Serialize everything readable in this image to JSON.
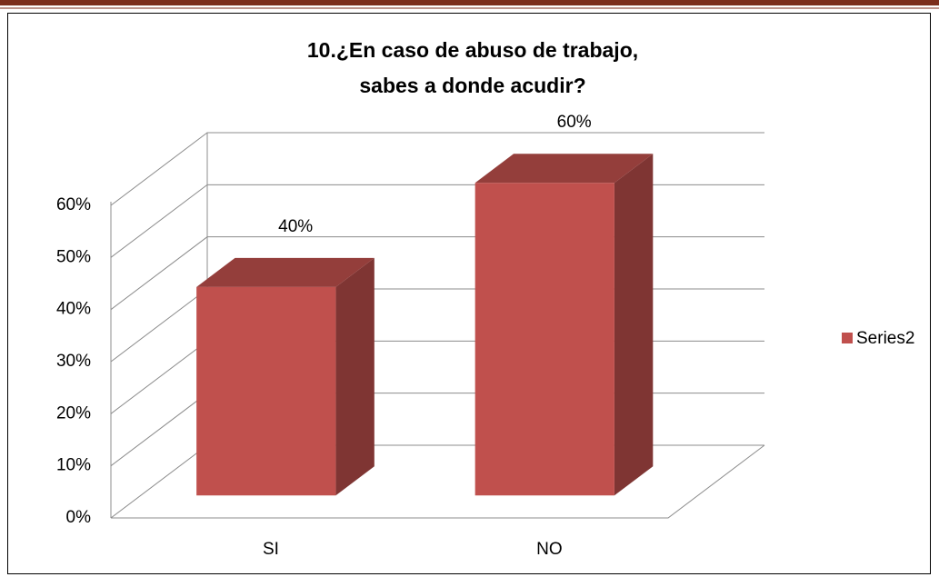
{
  "chart_data": {
    "type": "bar3d",
    "title": "10.¿En caso de abuso de trabajo, sabes a donde acudir?",
    "categories": [
      "SI",
      "NO"
    ],
    "series": [
      {
        "name": "Series2",
        "color": "#c0504d",
        "values": [
          40,
          60
        ],
        "value_labels": [
          "40%",
          "60%"
        ]
      }
    ],
    "ylim": [
      0,
      60
    ],
    "yticks": [
      {
        "value": 0,
        "label": "0%"
      },
      {
        "value": 10,
        "label": "10%"
      },
      {
        "value": 20,
        "label": "20%"
      },
      {
        "value": 30,
        "label": "30%"
      },
      {
        "value": 40,
        "label": "40%"
      },
      {
        "value": 50,
        "label": "50%"
      },
      {
        "value": 60,
        "label": "60%"
      }
    ],
    "grid": true,
    "legend": "right"
  }
}
